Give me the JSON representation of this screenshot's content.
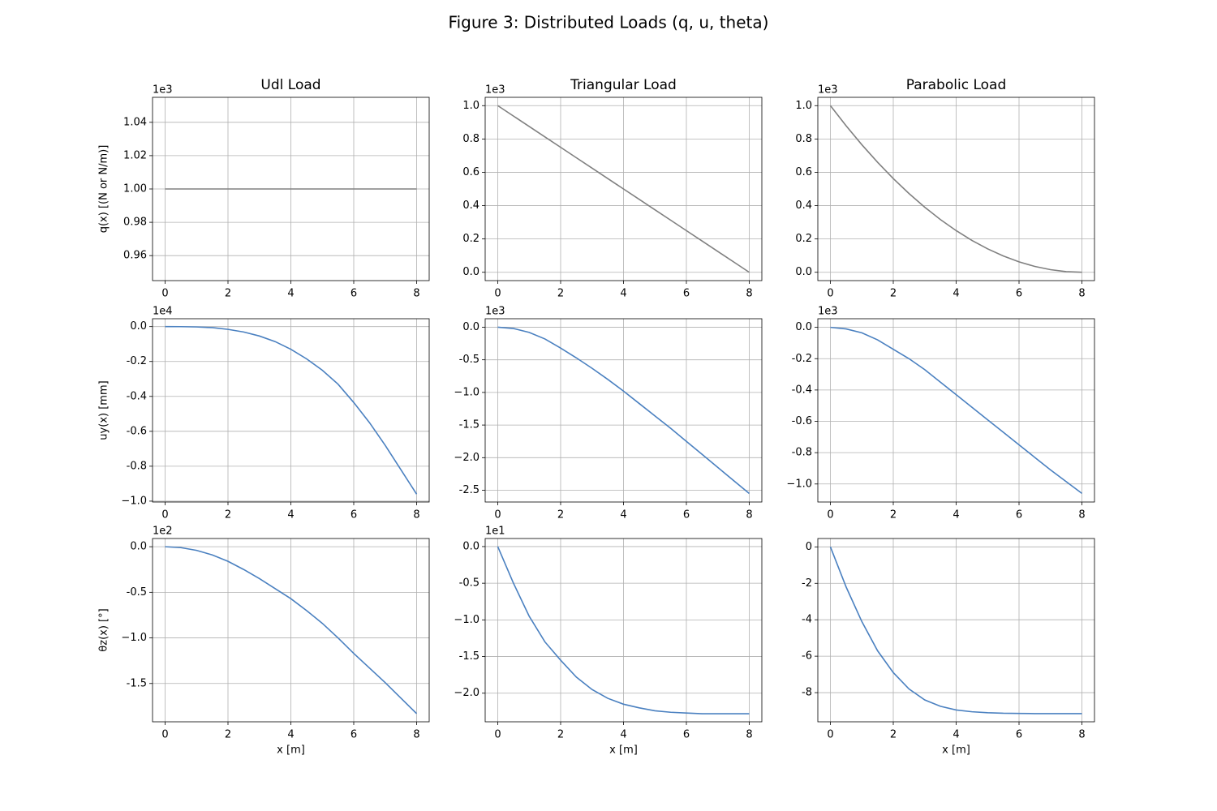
{
  "title": "Figure 3: Distributed Loads (q, u, theta)",
  "chart_data": [
    {
      "type": "line",
      "title": "Udl Load",
      "ylabel": "q(x) [(N or N/m)]",
      "y_offset": "1e3",
      "color": "#808080",
      "x": [
        0,
        0.5,
        1,
        1.5,
        2,
        2.5,
        3,
        3.5,
        4,
        4.5,
        5,
        5.5,
        6,
        6.5,
        7,
        7.5,
        8
      ],
      "values": [
        1,
        1,
        1,
        1,
        1,
        1,
        1,
        1,
        1,
        1,
        1,
        1,
        1,
        1,
        1,
        1,
        1
      ],
      "xlim": [
        -0.4,
        8.4
      ],
      "xticks": [
        0,
        2,
        4,
        6,
        8
      ],
      "ylim": [
        0.945,
        1.055
      ],
      "yticks": [
        0.96,
        0.98,
        {
          "value": 1,
          "label": "1.00"
        },
        1.02,
        1.04
      ],
      "grid": true
    },
    {
      "type": "line",
      "title": "Triangular Load",
      "y_offset": "1e3",
      "color": "#808080",
      "x": [
        0,
        0.5,
        1,
        1.5,
        2,
        2.5,
        3,
        3.5,
        4,
        4.5,
        5,
        5.5,
        6,
        6.5,
        7,
        7.5,
        8
      ],
      "values": [
        1,
        0.9375,
        0.875,
        0.8125,
        0.75,
        0.6875,
        0.625,
        0.5625,
        0.5,
        0.4375,
        0.375,
        0.3125,
        0.25,
        0.1875,
        0.125,
        0.0625,
        0
      ],
      "xlim": [
        -0.4,
        8.4
      ],
      "xticks": [
        0,
        2,
        4,
        6,
        8
      ],
      "ylim": [
        -0.05,
        1.05
      ],
      "yticks": [
        {
          "value": 0,
          "label": "0.0"
        },
        0.2,
        0.4,
        0.6,
        0.8,
        {
          "value": 1,
          "label": "1.0"
        }
      ],
      "grid": true
    },
    {
      "type": "line",
      "title": "Parabolic Load",
      "y_offset": "1e3",
      "color": "#808080",
      "x": [
        0,
        0.5,
        1,
        1.5,
        2,
        2.5,
        3,
        3.5,
        4,
        4.5,
        5,
        5.5,
        6,
        6.5,
        7,
        7.5,
        8
      ],
      "values": [
        1,
        0.8789,
        0.7656,
        0.6602,
        0.5625,
        0.4727,
        0.3906,
        0.3164,
        0.25,
        0.1914,
        0.1406,
        0.0977,
        0.0625,
        0.0352,
        0.0156,
        0.0039,
        0
      ],
      "xlim": [
        -0.4,
        8.4
      ],
      "xticks": [
        0,
        2,
        4,
        6,
        8
      ],
      "ylim": [
        -0.05,
        1.05
      ],
      "yticks": [
        {
          "value": 0,
          "label": "0.0"
        },
        0.2,
        0.4,
        0.6,
        0.8,
        {
          "value": 1,
          "label": "1.0"
        }
      ],
      "grid": true
    },
    {
      "type": "line",
      "ylabel": "uy(x) [mm]",
      "y_offset": "1e4",
      "color": "#4a80c0",
      "x": [
        0,
        0.5,
        1,
        1.5,
        2,
        2.5,
        3,
        3.5,
        4,
        4.5,
        5,
        5.5,
        6,
        6.5,
        7,
        7.5,
        8
      ],
      "values": [
        0,
        -0.0003,
        -0.002,
        -0.006,
        -0.016,
        -0.031,
        -0.054,
        -0.086,
        -0.13,
        -0.185,
        -0.25,
        -0.33,
        -0.435,
        -0.55,
        -0.68,
        -0.82,
        -0.96
      ],
      "xlim": [
        -0.4,
        8.4
      ],
      "xticks": [
        0,
        2,
        4,
        6,
        8
      ],
      "ylim": [
        -1.005,
        0.045
      ],
      "yticks": [
        {
          "value": 0,
          "label": "0.0"
        },
        -0.2,
        -0.4,
        -0.6,
        -0.8,
        {
          "value": -1,
          "label": "−1.0"
        }
      ],
      "grid": true
    },
    {
      "type": "line",
      "y_offset": "1e3",
      "color": "#4a80c0",
      "x": [
        0,
        0.5,
        1,
        1.5,
        2,
        2.5,
        3,
        3.5,
        4,
        4.5,
        5,
        5.5,
        6,
        6.5,
        7,
        7.5,
        8
      ],
      "values": [
        0,
        -0.02,
        -0.08,
        -0.18,
        -0.32,
        -0.47,
        -0.63,
        -0.8,
        -0.98,
        -1.17,
        -1.36,
        -1.55,
        -1.75,
        -1.95,
        -2.15,
        -2.35,
        -2.55
      ],
      "xlim": [
        -0.4,
        8.4
      ],
      "xticks": [
        0,
        2,
        4,
        6,
        8
      ],
      "ylim": [
        -2.68,
        0.13
      ],
      "yticks": [
        {
          "value": 0,
          "label": "0.0"
        },
        -0.5,
        {
          "value": -1,
          "label": "−1.0"
        },
        -1.5,
        {
          "value": -2,
          "label": "−2.0"
        },
        -2.5
      ],
      "grid": true
    },
    {
      "type": "line",
      "y_offset": "1e3",
      "color": "#4a80c0",
      "x": [
        0,
        0.5,
        1,
        1.5,
        2,
        2.5,
        3,
        3.5,
        4,
        4.5,
        5,
        5.5,
        6,
        6.5,
        7,
        7.5,
        8
      ],
      "values": [
        0,
        -0.01,
        -0.035,
        -0.08,
        -0.14,
        -0.2,
        -0.27,
        -0.35,
        -0.43,
        -0.51,
        -0.59,
        -0.67,
        -0.75,
        -0.83,
        -0.91,
        -0.985,
        -1.06
      ],
      "xlim": [
        -0.4,
        8.4
      ],
      "xticks": [
        0,
        2,
        4,
        6,
        8
      ],
      "ylim": [
        -1.115,
        0.055
      ],
      "yticks": [
        {
          "value": 0,
          "label": "0.0"
        },
        -0.2,
        -0.4,
        -0.6,
        -0.8,
        {
          "value": -1,
          "label": "−1.0"
        }
      ],
      "grid": true
    },
    {
      "type": "line",
      "ylabel": "θz(x) [°]",
      "xlabel": "x [m]",
      "y_offset": "1e2",
      "color": "#4a80c0",
      "x": [
        0,
        0.5,
        1,
        1.5,
        2,
        2.5,
        3,
        3.5,
        4,
        4.5,
        5,
        5.5,
        6,
        6.5,
        7,
        7.5,
        8
      ],
      "values": [
        0,
        -0.01,
        -0.04,
        -0.09,
        -0.16,
        -0.25,
        -0.35,
        -0.46,
        -0.57,
        -0.7,
        -0.84,
        -1.0,
        -1.17,
        -1.33,
        -1.49,
        -1.66,
        -1.83
      ],
      "xlim": [
        -0.4,
        8.4
      ],
      "xticks": [
        0,
        2,
        4,
        6,
        8
      ],
      "ylim": [
        -1.92,
        0.09
      ],
      "yticks": [
        {
          "value": 0,
          "label": "0.0"
        },
        -0.5,
        {
          "value": -1,
          "label": "−1.0"
        },
        -1.5
      ],
      "grid": true
    },
    {
      "type": "line",
      "xlabel": "x [m]",
      "y_offset": "1e1",
      "color": "#4a80c0",
      "x": [
        0,
        0.5,
        1,
        1.5,
        2,
        2.5,
        3,
        3.5,
        4,
        4.5,
        5,
        5.5,
        6,
        6.5,
        7,
        7.5,
        8
      ],
      "values": [
        0,
        -0.5,
        -0.95,
        -1.3,
        -1.55,
        -1.78,
        -1.95,
        -2.07,
        -2.15,
        -2.2,
        -2.24,
        -2.26,
        -2.27,
        -2.28,
        -2.28,
        -2.28,
        -2.28
      ],
      "xlim": [
        -0.4,
        8.4
      ],
      "xticks": [
        0,
        2,
        4,
        6,
        8
      ],
      "ylim": [
        -2.39,
        0.11
      ],
      "yticks": [
        {
          "value": 0,
          "label": "0.0"
        },
        -0.5,
        {
          "value": -1,
          "label": "−1.0"
        },
        -1.5,
        {
          "value": -2,
          "label": "−2.0"
        }
      ],
      "grid": true
    },
    {
      "type": "line",
      "xlabel": "x [m]",
      "color": "#4a80c0",
      "x": [
        0,
        0.5,
        1,
        1.5,
        2,
        2.5,
        3,
        3.5,
        4,
        4.5,
        5,
        5.5,
        6,
        6.5,
        7,
        7.5,
        8
      ],
      "values": [
        0,
        -2.2,
        -4.1,
        -5.7,
        -6.9,
        -7.8,
        -8.4,
        -8.75,
        -8.95,
        -9.05,
        -9.1,
        -9.13,
        -9.14,
        -9.15,
        -9.15,
        -9.15,
        -9.15
      ],
      "xlim": [
        -0.4,
        8.4
      ],
      "xticks": [
        0,
        2,
        4,
        6,
        8
      ],
      "ylim": [
        -9.6,
        0.46
      ],
      "yticks": [
        0,
        -2,
        -4,
        -6,
        -8
      ],
      "grid": true
    }
  ]
}
